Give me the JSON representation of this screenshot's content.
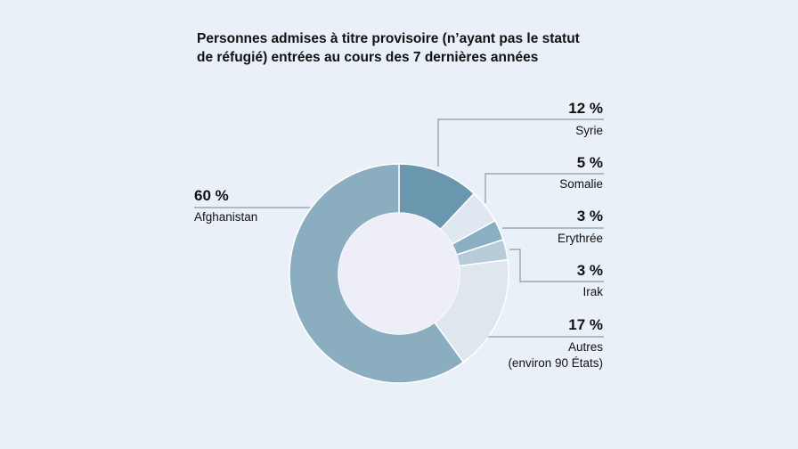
{
  "chart_data": {
    "type": "pie",
    "title_lines": [
      "Personnes admises à titre provisoire (n’ayant pas le statut",
      "de réfugié) entrées au cours des 7 dernières années"
    ],
    "slices": [
      {
        "label": "Syrie",
        "value": 12,
        "value_label": "12 %",
        "color": "#6a97ad"
      },
      {
        "label": "Somalie",
        "value": 5,
        "value_label": "5 %",
        "color": "#dfe8f0"
      },
      {
        "label": "Erythrée",
        "value": 3,
        "value_label": "3 %",
        "color": "#8aaec2"
      },
      {
        "label": "Irak",
        "value": 3,
        "value_label": "3 %",
        "color": "#b7cbd8"
      },
      {
        "label": "Autres",
        "label_2": "(environ 90 États)",
        "value": 17,
        "value_label": "17 %",
        "color": "#dfe6ed"
      },
      {
        "label": "Afghanistan",
        "value": 60,
        "value_label": "60 %",
        "color": "#8aaec0"
      }
    ]
  }
}
